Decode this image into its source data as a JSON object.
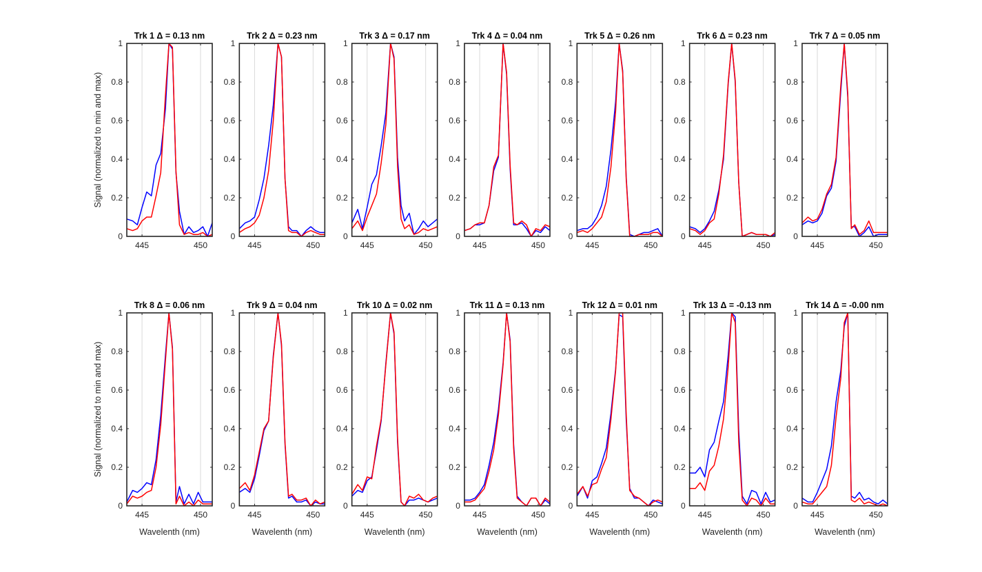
{
  "figure": {
    "ylabel": "Signal (normalized to min and max)",
    "xlabel": "Wavelenth (nm)",
    "x_ticks": [
      445,
      450
    ],
    "y_ticks": [
      0,
      0.2,
      0.4,
      0.6,
      0.8,
      1
    ],
    "y_tick_labels": [
      "0",
      "0.2",
      "0.4",
      "0.6",
      "0.8",
      "1"
    ],
    "xlim": [
      443.7,
      451.0
    ],
    "ylim": [
      0,
      1
    ],
    "colors": {
      "series_a": "#0000ff",
      "series_b": "#ff0000",
      "grid": "#d9d9d9",
      "axis": "#262626"
    }
  },
  "chart_data": {
    "type": "line",
    "x": [
      443.7,
      444.2,
      444.6,
      445.0,
      445.4,
      445.8,
      446.2,
      446.6,
      447.0,
      447.3,
      447.6,
      447.9,
      448.2,
      448.6,
      449.0,
      449.4,
      449.8,
      450.2,
      450.6,
      451.0
    ],
    "series_names": [
      "blue",
      "red"
    ],
    "panels": [
      {
        "title": "Trk 1 Δ = 0.13 nm",
        "series": [
          {
            "name": "blue",
            "values": [
              0.09,
              0.08,
              0.06,
              0.15,
              0.23,
              0.21,
              0.37,
              0.43,
              0.66,
              1.0,
              0.97,
              0.33,
              0.13,
              0.01,
              0.05,
              0.02,
              0.03,
              0.05,
              0.0,
              0.07
            ]
          },
          {
            "name": "red",
            "values": [
              0.04,
              0.03,
              0.04,
              0.08,
              0.1,
              0.1,
              0.21,
              0.33,
              0.73,
              1.0,
              0.98,
              0.34,
              0.06,
              0.01,
              0.02,
              0.01,
              0.01,
              0.02,
              0.0,
              0.01
            ]
          }
        ]
      },
      {
        "title": "Trk 2 Δ = 0.23 nm",
        "series": [
          {
            "name": "blue",
            "values": [
              0.04,
              0.07,
              0.08,
              0.1,
              0.19,
              0.3,
              0.47,
              0.68,
              1.0,
              0.93,
              0.3,
              0.05,
              0.03,
              0.03,
              0.0,
              0.03,
              0.05,
              0.03,
              0.02,
              0.02
            ]
          },
          {
            "name": "red",
            "values": [
              0.02,
              0.04,
              0.05,
              0.07,
              0.11,
              0.2,
              0.34,
              0.6,
              1.0,
              0.93,
              0.3,
              0.03,
              0.02,
              0.02,
              0.0,
              0.02,
              0.03,
              0.02,
              0.01,
              0.01
            ]
          }
        ]
      },
      {
        "title": "Trk 3 Δ = 0.17 nm",
        "series": [
          {
            "name": "blue",
            "values": [
              0.07,
              0.14,
              0.04,
              0.15,
              0.27,
              0.32,
              0.47,
              0.64,
              1.0,
              0.93,
              0.41,
              0.16,
              0.08,
              0.12,
              0.01,
              0.04,
              0.08,
              0.05,
              0.07,
              0.09
            ]
          },
          {
            "name": "red",
            "values": [
              0.04,
              0.08,
              0.03,
              0.1,
              0.16,
              0.22,
              0.38,
              0.58,
              1.0,
              0.92,
              0.36,
              0.09,
              0.04,
              0.06,
              0.01,
              0.02,
              0.04,
              0.03,
              0.04,
              0.05
            ]
          }
        ]
      },
      {
        "title": "Trk 4 Δ = 0.04 nm",
        "series": [
          {
            "name": "blue",
            "values": [
              0.03,
              0.04,
              0.06,
              0.06,
              0.07,
              0.16,
              0.34,
              0.41,
              1.0,
              0.84,
              0.35,
              0.06,
              0.06,
              0.07,
              0.04,
              0.0,
              0.03,
              0.02,
              0.05,
              0.03
            ]
          },
          {
            "name": "red",
            "values": [
              0.03,
              0.04,
              0.06,
              0.07,
              0.07,
              0.16,
              0.36,
              0.42,
              1.0,
              0.85,
              0.37,
              0.07,
              0.06,
              0.08,
              0.06,
              0.0,
              0.04,
              0.03,
              0.06,
              0.05
            ]
          }
        ]
      },
      {
        "title": "Trk 5 Δ = 0.26 nm",
        "series": [
          {
            "name": "blue",
            "values": [
              0.03,
              0.04,
              0.04,
              0.06,
              0.1,
              0.16,
              0.26,
              0.45,
              0.7,
              1.0,
              0.86,
              0.31,
              0.01,
              0.0,
              0.01,
              0.02,
              0.02,
              0.03,
              0.04,
              0.0
            ]
          },
          {
            "name": "red",
            "values": [
              0.02,
              0.03,
              0.02,
              0.04,
              0.07,
              0.1,
              0.18,
              0.36,
              0.65,
              1.0,
              0.85,
              0.3,
              0.0,
              0.0,
              0.01,
              0.01,
              0.01,
              0.02,
              0.02,
              0.0
            ]
          }
        ]
      },
      {
        "title": "Trk 6 Δ = 0.23 nm",
        "series": [
          {
            "name": "blue",
            "values": [
              0.05,
              0.04,
              0.02,
              0.04,
              0.08,
              0.13,
              0.24,
              0.4,
              0.79,
              1.0,
              0.8,
              0.28,
              0.0,
              0.01,
              0.02,
              0.01,
              0.01,
              0.01,
              0.0,
              0.01
            ]
          },
          {
            "name": "red",
            "values": [
              0.04,
              0.03,
              0.01,
              0.03,
              0.07,
              0.09,
              0.22,
              0.42,
              0.8,
              1.0,
              0.81,
              0.28,
              0.0,
              0.01,
              0.02,
              0.01,
              0.01,
              0.01,
              0.0,
              0.02
            ]
          }
        ]
      },
      {
        "title": "Trk 7 Δ = 0.05 nm",
        "series": [
          {
            "name": "blue",
            "values": [
              0.06,
              0.08,
              0.07,
              0.08,
              0.12,
              0.21,
              0.25,
              0.39,
              0.75,
              1.0,
              0.72,
              0.05,
              0.05,
              0.0,
              0.02,
              0.05,
              0.0,
              0.01,
              0.01,
              0.01
            ]
          },
          {
            "name": "red",
            "values": [
              0.07,
              0.1,
              0.08,
              0.09,
              0.14,
              0.22,
              0.27,
              0.41,
              0.78,
              1.0,
              0.74,
              0.04,
              0.06,
              0.01,
              0.03,
              0.08,
              0.02,
              0.02,
              0.02,
              0.02
            ]
          }
        ]
      },
      {
        "title": "Trk 8 Δ = 0.06 nm",
        "series": [
          {
            "name": "blue",
            "values": [
              0.02,
              0.08,
              0.07,
              0.09,
              0.12,
              0.11,
              0.24,
              0.47,
              0.78,
              1.0,
              0.82,
              0.02,
              0.1,
              0.01,
              0.06,
              0.01,
              0.07,
              0.02,
              0.02,
              0.02
            ]
          },
          {
            "name": "red",
            "values": [
              0.01,
              0.05,
              0.04,
              0.05,
              0.07,
              0.08,
              0.2,
              0.42,
              0.75,
              1.0,
              0.81,
              0.01,
              0.05,
              0.0,
              0.02,
              0.0,
              0.03,
              0.01,
              0.01,
              0.01
            ]
          }
        ]
      },
      {
        "title": "Trk 9 Δ = 0.04 nm",
        "series": [
          {
            "name": "blue",
            "values": [
              0.07,
              0.09,
              0.07,
              0.14,
              0.26,
              0.39,
              0.44,
              0.78,
              1.0,
              0.83,
              0.32,
              0.04,
              0.05,
              0.02,
              0.02,
              0.03,
              0.0,
              0.02,
              0.01,
              0.01
            ]
          },
          {
            "name": "red",
            "values": [
              0.09,
              0.12,
              0.08,
              0.16,
              0.28,
              0.4,
              0.44,
              0.77,
              1.0,
              0.84,
              0.33,
              0.05,
              0.06,
              0.03,
              0.03,
              0.04,
              0.0,
              0.03,
              0.01,
              0.02
            ]
          }
        ]
      },
      {
        "title": "Trk 10 Δ = 0.02 nm",
        "series": [
          {
            "name": "blue",
            "values": [
              0.05,
              0.08,
              0.07,
              0.13,
              0.15,
              0.29,
              0.44,
              0.74,
              1.0,
              0.89,
              0.33,
              0.02,
              0.0,
              0.03,
              0.03,
              0.04,
              0.03,
              0.02,
              0.03,
              0.04
            ]
          },
          {
            "name": "red",
            "values": [
              0.06,
              0.11,
              0.08,
              0.15,
              0.14,
              0.31,
              0.45,
              0.73,
              1.0,
              0.9,
              0.35,
              0.02,
              0.0,
              0.05,
              0.04,
              0.06,
              0.03,
              0.02,
              0.04,
              0.05
            ]
          }
        ]
      },
      {
        "title": "Trk 11 Δ = 0.13 nm",
        "series": [
          {
            "name": "blue",
            "values": [
              0.03,
              0.03,
              0.04,
              0.07,
              0.11,
              0.21,
              0.33,
              0.5,
              0.74,
              1.0,
              0.86,
              0.32,
              0.05,
              0.02,
              0.0,
              0.04,
              0.04,
              0.0,
              0.03,
              0.01
            ]
          },
          {
            "name": "red",
            "values": [
              0.02,
              0.02,
              0.03,
              0.06,
              0.09,
              0.18,
              0.29,
              0.47,
              0.73,
              1.0,
              0.85,
              0.3,
              0.04,
              0.02,
              0.0,
              0.04,
              0.04,
              0.0,
              0.04,
              0.02
            ]
          }
        ]
      },
      {
        "title": "Trk 12 Δ = 0.01 nm",
        "series": [
          {
            "name": "blue",
            "values": [
              0.05,
              0.1,
              0.04,
              0.13,
              0.15,
              0.22,
              0.3,
              0.48,
              0.71,
              0.99,
              0.98,
              0.45,
              0.09,
              0.04,
              0.04,
              0.02,
              0.0,
              0.03,
              0.02,
              0.01
            ]
          },
          {
            "name": "red",
            "values": [
              0.06,
              0.1,
              0.05,
              0.11,
              0.12,
              0.19,
              0.25,
              0.45,
              0.7,
              1.0,
              1.0,
              0.48,
              0.08,
              0.05,
              0.04,
              0.02,
              0.0,
              0.02,
              0.03,
              0.02
            ]
          }
        ]
      },
      {
        "title": "Trk 13 Δ = -0.13 nm",
        "series": [
          {
            "name": "blue",
            "values": [
              0.17,
              0.17,
              0.2,
              0.15,
              0.29,
              0.33,
              0.44,
              0.54,
              0.78,
              1.0,
              0.98,
              0.39,
              0.05,
              0.01,
              0.08,
              0.07,
              0.01,
              0.07,
              0.02,
              0.03
            ]
          },
          {
            "name": "red",
            "values": [
              0.09,
              0.09,
              0.12,
              0.08,
              0.18,
              0.21,
              0.31,
              0.45,
              0.72,
              1.0,
              0.95,
              0.33,
              0.03,
              0.0,
              0.04,
              0.03,
              0.0,
              0.04,
              0.01,
              0.01
            ]
          }
        ]
      },
      {
        "title": "Trk 14 Δ = -0.00 nm",
        "series": [
          {
            "name": "blue",
            "values": [
              0.04,
              0.02,
              0.02,
              0.07,
              0.13,
              0.19,
              0.31,
              0.54,
              0.7,
              0.93,
              1.0,
              0.05,
              0.04,
              0.07,
              0.03,
              0.04,
              0.02,
              0.01,
              0.03,
              0.01
            ]
          },
          {
            "name": "red",
            "values": [
              0.02,
              0.01,
              0.01,
              0.04,
              0.07,
              0.1,
              0.21,
              0.46,
              0.66,
              0.95,
              1.0,
              0.03,
              0.02,
              0.04,
              0.01,
              0.02,
              0.01,
              0.0,
              0.01,
              0.0
            ]
          }
        ]
      }
    ]
  }
}
